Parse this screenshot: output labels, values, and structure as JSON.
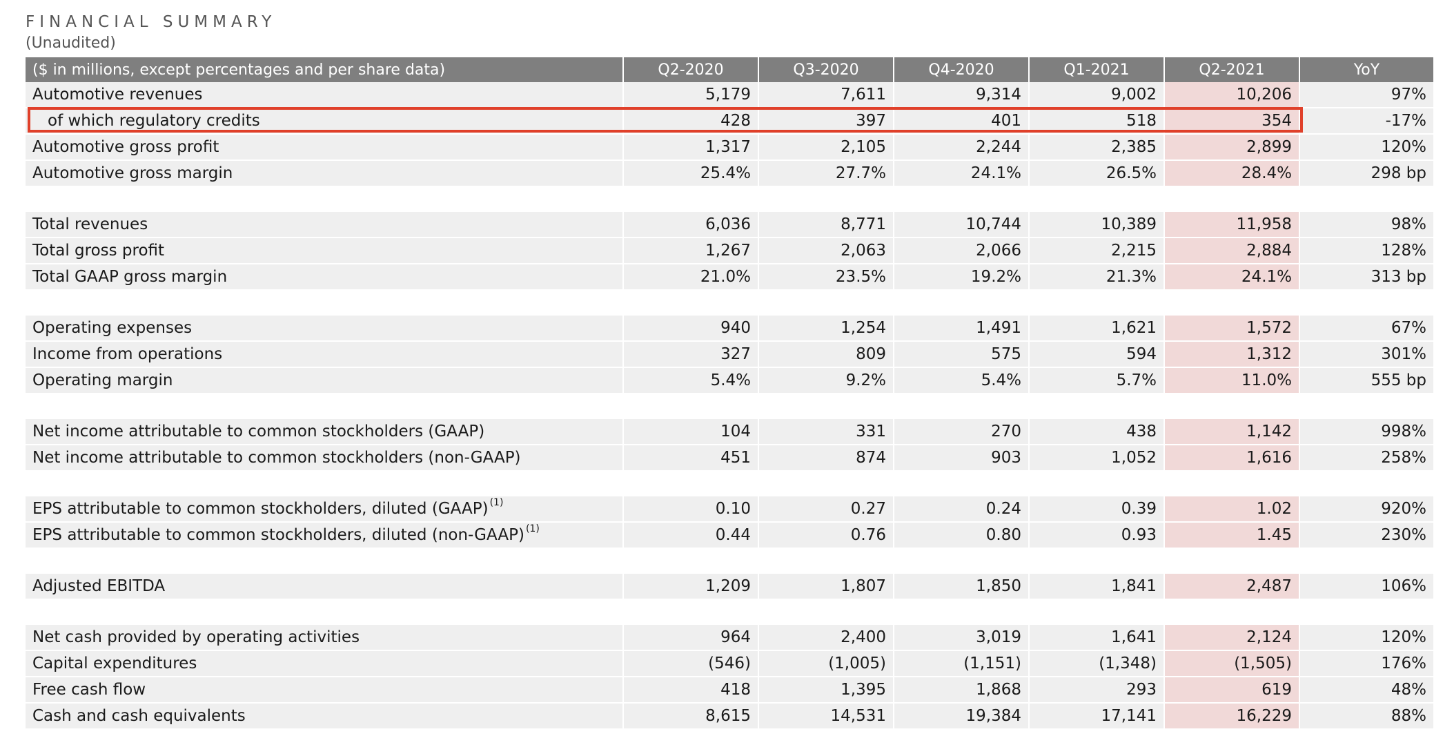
{
  "title": "FINANCIAL SUMMARY",
  "subtitle": "(Unaudited)",
  "header": {
    "label": "($ in millions, except percentages and per share data)",
    "columns": [
      "Q2-2020",
      "Q3-2020",
      "Q4-2020",
      "Q1-2021",
      "Q2-2021",
      "YoY"
    ]
  },
  "highlight_color": "#e0402a",
  "highlight_column_color": "#f1d9d8",
  "header_color": "#7f7f7f",
  "groups": [
    {
      "rows": [
        {
          "label": "Automotive revenues",
          "values": [
            "5,179",
            "7,611",
            "9,314",
            "9,002",
            "10,206",
            "97%"
          ]
        },
        {
          "label": "of which regulatory credits",
          "values": [
            "428",
            "397",
            "401",
            "518",
            "354",
            "-17%"
          ],
          "boxed": true
        },
        {
          "label": "Automotive gross profit",
          "values": [
            "1,317",
            "2,105",
            "2,244",
            "2,385",
            "2,899",
            "120%"
          ]
        },
        {
          "label": "Automotive gross margin",
          "values": [
            "25.4%",
            "27.7%",
            "24.1%",
            "26.5%",
            "28.4%",
            "298 bp"
          ]
        }
      ]
    },
    {
      "rows": [
        {
          "label": "Total revenues",
          "values": [
            "6,036",
            "8,771",
            "10,744",
            "10,389",
            "11,958",
            "98%"
          ]
        },
        {
          "label": "Total gross profit",
          "values": [
            "1,267",
            "2,063",
            "2,066",
            "2,215",
            "2,884",
            "128%"
          ]
        },
        {
          "label": "Total GAAP gross margin",
          "values": [
            "21.0%",
            "23.5%",
            "19.2%",
            "21.3%",
            "24.1%",
            "313 bp"
          ]
        }
      ]
    },
    {
      "rows": [
        {
          "label": "Operating expenses",
          "values": [
            "940",
            "1,254",
            "1,491",
            "1,621",
            "1,572",
            "67%"
          ]
        },
        {
          "label": "Income from operations",
          "values": [
            "327",
            "809",
            "575",
            "594",
            "1,312",
            "301%"
          ]
        },
        {
          "label": "Operating margin",
          "values": [
            "5.4%",
            "9.2%",
            "5.4%",
            "5.7%",
            "11.0%",
            "555 bp"
          ]
        }
      ]
    },
    {
      "rows": [
        {
          "label": "Net income attributable to common stockholders (GAAP)",
          "values": [
            "104",
            "331",
            "270",
            "438",
            "1,142",
            "998%"
          ]
        },
        {
          "label": "Net income attributable to common stockholders (non-GAAP)",
          "values": [
            "451",
            "874",
            "903",
            "1,052",
            "1,616",
            "258%"
          ]
        }
      ]
    },
    {
      "rows": [
        {
          "label": "EPS attributable to common stockholders, diluted (GAAP)",
          "footnote": "(1)",
          "values": [
            "0.10",
            "0.27",
            "0.24",
            "0.39",
            "1.02",
            "920%"
          ]
        },
        {
          "label": "EPS attributable to common stockholders, diluted (non-GAAP)",
          "footnote": "(1)",
          "values": [
            "0.44",
            "0.76",
            "0.80",
            "0.93",
            "1.45",
            "230%"
          ]
        }
      ]
    },
    {
      "rows": [
        {
          "label": "Adjusted EBITDA",
          "values": [
            "1,209",
            "1,807",
            "1,850",
            "1,841",
            "2,487",
            "106%"
          ]
        }
      ]
    },
    {
      "rows": [
        {
          "label": "Net cash provided by operating activities",
          "values": [
            "964",
            "2,400",
            "3,019",
            "1,641",
            "2,124",
            "120%"
          ]
        },
        {
          "label": "Capital expenditures",
          "values": [
            "(546)",
            "(1,005)",
            "(1,151)",
            "(1,348)",
            "(1,505)",
            "176%"
          ]
        },
        {
          "label": "Free cash flow",
          "values": [
            "418",
            "1,395",
            "1,868",
            "293",
            "619",
            "48%"
          ]
        },
        {
          "label": "Cash and cash equivalents",
          "values": [
            "8,615",
            "14,531",
            "19,384",
            "17,141",
            "16,229",
            "88%"
          ]
        }
      ]
    }
  ]
}
